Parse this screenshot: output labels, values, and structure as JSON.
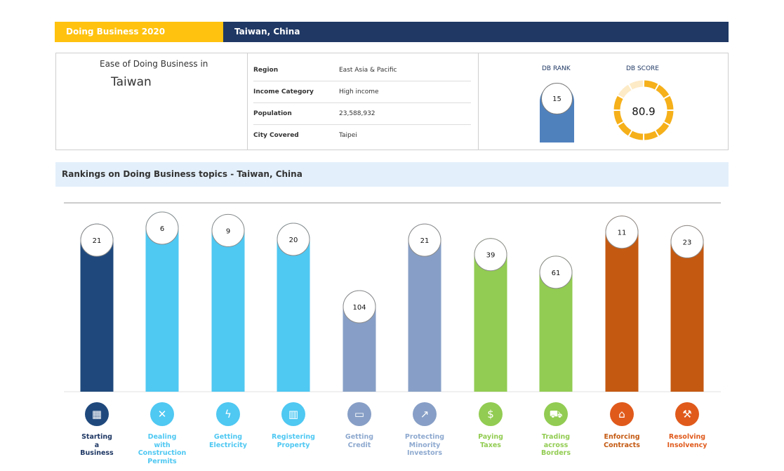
{
  "banner": {
    "left_text": "Doing Business  2020",
    "right_text": "Taiwan, China"
  },
  "profile": {
    "ease_label": "Ease of Doing Business in",
    "country": "Taiwan",
    "rows": [
      {
        "key": "Region",
        "value": "East Asia & Pacific"
      },
      {
        "key": "Income Category",
        "value": "High income"
      },
      {
        "key": "Population",
        "value": "23,588,932"
      },
      {
        "key": "City Covered",
        "value": "Taipei"
      }
    ],
    "db_rank_label": "DB RANK",
    "db_rank": "15",
    "db_score_label": "DB SCORE",
    "db_score": "80.9",
    "db_score_value": 80.9
  },
  "section_title": "Rankings on Doing Business topics - Taiwan, China",
  "colors": {
    "banner_yellow": "#ffc20e",
    "banner_navy": "#1f3864",
    "rank_bar": "#4f81bd",
    "score_ring": "#f5b01a",
    "score_ring_light": "#fdebc7"
  },
  "chart_data": {
    "type": "bar",
    "categories": [
      [
        "Starting",
        "a",
        "Business"
      ],
      [
        "Dealing",
        "with",
        "Construction",
        "Permits"
      ],
      [
        "Getting",
        "Electricity"
      ],
      [
        "Registering",
        "Property"
      ],
      [
        "Getting",
        "Credit"
      ],
      [
        "Protecting",
        "Minority",
        "Investors"
      ],
      [
        "Paying",
        "Taxes"
      ],
      [
        "Trading",
        "across",
        "Borders"
      ],
      [
        "Enforcing",
        "Contracts"
      ],
      [
        "Resolving",
        "Insolvency"
      ]
    ],
    "values": [
      21,
      6,
      9,
      20,
      104,
      21,
      39,
      61,
      11,
      23
    ],
    "bar_colors": [
      "#1f497d",
      "#4fc8f2",
      "#4fc8f2",
      "#4fc8f2",
      "#879fc6",
      "#879fc6",
      "#92cc52",
      "#92cc52",
      "#c45911",
      "#c45911"
    ],
    "label_colors": [
      "#1f3864",
      "#4fc8f2",
      "#4fc8f2",
      "#4fc8f2",
      "#8ea9cf",
      "#8ea9cf",
      "#92cc52",
      "#92cc52",
      "#c45911",
      "#e05a1c"
    ],
    "icons": [
      "building-icon",
      "tools-icon",
      "lightning-icon",
      "city-icon",
      "credit-card-icon",
      "chart-trend-icon",
      "money-icon",
      "truck-icon",
      "courthouse-icon",
      "gavel-icon"
    ],
    "icon_glyphs": [
      "▦",
      "✕",
      "ϟ",
      "▥",
      "▭",
      "↗",
      "$",
      "⛟",
      "⌂",
      "⚒"
    ],
    "icon_colors": [
      "#1f497d",
      "#4fc8f2",
      "#4fc8f2",
      "#4fc8f2",
      "#879fc6",
      "#879fc6",
      "#92cc52",
      "#92cc52",
      "#e05a1c",
      "#e05a1c"
    ],
    "title": "",
    "xlabel": "",
    "ylabel": "",
    "note": ""
  }
}
